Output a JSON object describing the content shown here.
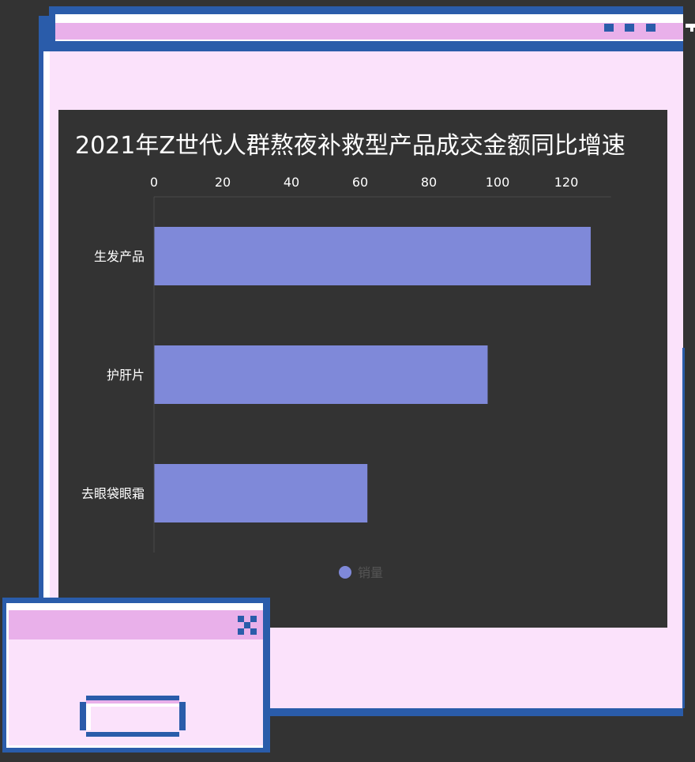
{
  "chart_data": {
    "type": "bar",
    "orientation": "horizontal",
    "title": "2021年Z世代人群熬夜补救型产品成交金额同比增速",
    "categories": [
      "生发产品",
      "护肝片",
      "去眼袋眼霜"
    ],
    "series": [
      {
        "name": "销量",
        "values": [
          127,
          97,
          62
        ],
        "color": "#7f89d9"
      }
    ],
    "x_ticks": [
      0,
      20,
      40,
      60,
      80,
      100,
      120
    ],
    "xlim": [
      0,
      133
    ],
    "axis_position": "top",
    "legend_position": "bottom",
    "grid": false
  },
  "colors": {
    "frame": "#2a5caa",
    "titlebar": "#e9b0ea",
    "window_body": "#fbe2fb",
    "panel": "#333333",
    "bar": "#7f89d9"
  },
  "main_window": {
    "controls": [
      "minimize-icon",
      "maximize-icon",
      "close-icon"
    ]
  },
  "small_window": {
    "close_icon": "close-icon",
    "button_label": ""
  }
}
